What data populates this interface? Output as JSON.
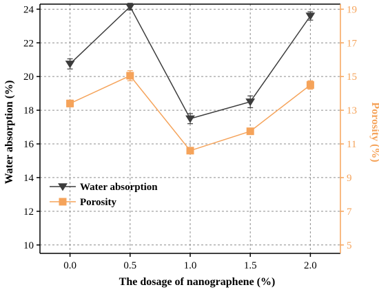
{
  "chart_data": {
    "type": "line",
    "xlabel": "The dosage of nanographene (%)",
    "x": [
      0.0,
      0.5,
      1.0,
      1.5,
      2.0
    ],
    "x_ticks": [
      "0.0",
      "0.5",
      "1.0",
      "1.5",
      "2.0"
    ],
    "xlim": [
      -0.25,
      2.25
    ],
    "ylabel_left": "Water absorption (%)",
    "ylabel_right": "Porosity (%)",
    "ylim_left": [
      9.5,
      24.3
    ],
    "yticks_left": [
      10,
      12,
      14,
      16,
      18,
      20,
      22,
      24
    ],
    "ylim_right": [
      4.5,
      19.3
    ],
    "yticks_right": [
      5,
      7,
      9,
      11,
      13,
      15,
      17,
      19
    ],
    "grid": true,
    "legend_position": "lower-left",
    "series": [
      {
        "name": "Water absorption",
        "axis": "left",
        "color": "#3c3c3c",
        "marker": "triangle-down",
        "values": [
          20.75,
          24.15,
          17.5,
          18.5,
          23.6
        ],
        "errors": [
          0.3,
          0.2,
          0.3,
          0.35,
          0.25
        ]
      },
      {
        "name": "Porosity",
        "axis": "right",
        "color": "#f5a35a",
        "marker": "square",
        "values": [
          13.4,
          15.05,
          10.6,
          11.75,
          14.5
        ],
        "errors": [
          0.2,
          0.3,
          0.15,
          0.15,
          0.25
        ]
      }
    ]
  }
}
